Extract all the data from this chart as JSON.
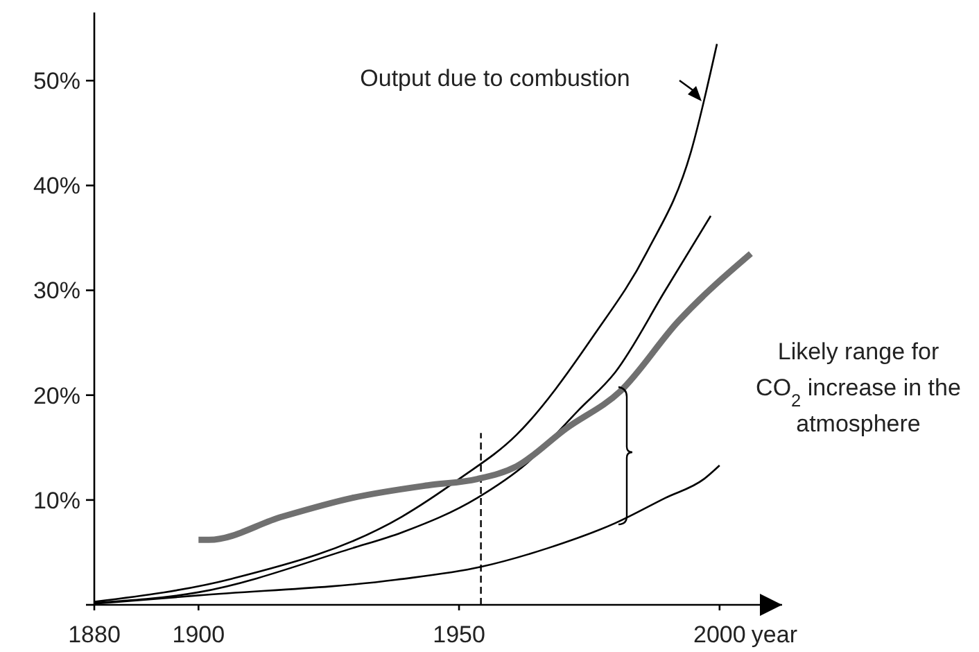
{
  "chart_data": {
    "type": "line",
    "xlabel": "year",
    "xlim": [
      1880,
      2012
    ],
    "ylim": [
      0,
      56.5
    ],
    "xticks": [
      1880,
      1900,
      1950,
      2000
    ],
    "yticks": [
      {
        "value": 0,
        "label": null
      },
      {
        "value": 10,
        "label": "10%"
      },
      {
        "value": 20,
        "label": "20%"
      },
      {
        "value": 30,
        "label": "30%"
      },
      {
        "value": 40,
        "label": "40%"
      },
      {
        "value": 50,
        "label": "50%"
      }
    ],
    "grid": false,
    "marker": "none",
    "line_style": "solid",
    "series": [
      {
        "color": "#000000",
        "x": [
          1880,
          1906.5,
          1939,
          1950,
          1961,
          1976,
          1986,
          1994.5,
          1999.5
        ],
        "values": [
          0.3,
          2.5,
          8.4,
          12.0,
          16.2,
          25.8,
          33.6,
          43.2,
          53.5
        ]
      },
      {
        "color": "#000000",
        "x": [
          1880,
          1900,
          1929.5,
          1939,
          1953.5,
          1963,
          1973,
          1980,
          1989.6,
          1998.3
        ],
        "values": [
          0.2,
          1.2,
          5.4,
          6.9,
          10.2,
          13.5,
          18.6,
          22.2,
          30.0,
          37.1
        ]
      },
      {
        "color": "#000000",
        "x": [
          1880,
          1900,
          1938,
          1954,
          1967,
          1980,
          1989.6,
          1997,
          2000
        ],
        "values": [
          0.1,
          0.9,
          2.4,
          3.6,
          5.4,
          7.8,
          10.2,
          12.0,
          13.3
        ]
      },
      {
        "color": "#707070",
        "x": [
          1900,
          1902,
          1916,
          1929.5,
          1944,
          1953.5,
          1961,
          1970.5,
          1981,
          1992,
          2006
        ],
        "values": [
          6.2,
          6.2,
          8.4,
          10.2,
          11.4,
          12.0,
          13.2,
          16.8,
          20.4,
          27.0,
          33.5
        ]
      }
    ],
    "ref_lines": [
      {
        "axis": "x",
        "value": 1954.2,
        "line_style": "dashed",
        "color": "#000000"
      }
    ],
    "annotations": [
      "Output due to combustion",
      "Likely range for CO$_{2}$ increase in the atmosphere"
    ]
  }
}
